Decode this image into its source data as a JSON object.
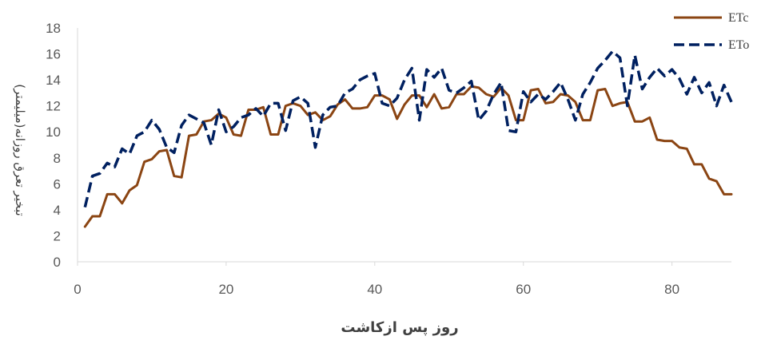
{
  "chart_data": {
    "type": "line",
    "title": "",
    "xlabel": "روز پس ازکاشت",
    "ylabel": "تبخیر تعرق روزانه(میلیمتر)",
    "xlim": [
      0,
      88
    ],
    "ylim": [
      0,
      18
    ],
    "xticks": [
      0,
      20,
      40,
      60,
      80
    ],
    "yticks": [
      0,
      2,
      4,
      6,
      8,
      10,
      12,
      14,
      16,
      18
    ],
    "grid": false,
    "legend_position": "top-right",
    "x": [
      1,
      2,
      3,
      4,
      5,
      6,
      7,
      8,
      9,
      10,
      11,
      12,
      13,
      14,
      15,
      16,
      17,
      18,
      19,
      20,
      21,
      22,
      23,
      24,
      25,
      26,
      27,
      28,
      29,
      30,
      31,
      32,
      33,
      34,
      35,
      36,
      37,
      38,
      39,
      40,
      41,
      42,
      43,
      44,
      45,
      46,
      47,
      48,
      49,
      50,
      51,
      52,
      53,
      54,
      55,
      56,
      57,
      58,
      59,
      60,
      61,
      62,
      63,
      64,
      65,
      66,
      67,
      68,
      69,
      70,
      71,
      72,
      73,
      74,
      75,
      76,
      77,
      78,
      79,
      80,
      81,
      82,
      83,
      84,
      85,
      86,
      87,
      88
    ],
    "series": [
      {
        "name": "ETc",
        "color": "#8B4513",
        "dash": "solid",
        "values": [
          2.7,
          3.5,
          3.5,
          5.2,
          5.2,
          4.5,
          5.5,
          5.9,
          7.7,
          7.9,
          8.5,
          8.6,
          6.6,
          6.5,
          9.7,
          9.8,
          10.8,
          10.9,
          11.4,
          11.1,
          9.8,
          9.7,
          11.7,
          11.7,
          11.9,
          9.8,
          9.8,
          12.0,
          12.2,
          12.0,
          11.3,
          11.5,
          10.9,
          11.2,
          12.1,
          12.5,
          11.8,
          11.8,
          11.9,
          12.8,
          12.8,
          12.5,
          11.0,
          12.1,
          12.8,
          12.8,
          11.9,
          12.9,
          11.8,
          11.9,
          12.9,
          12.9,
          13.5,
          13.4,
          12.9,
          12.7,
          13.4,
          12.8,
          10.9,
          10.9,
          13.2,
          13.3,
          12.2,
          12.3,
          12.9,
          12.8,
          12.3,
          10.9,
          10.9,
          13.2,
          13.3,
          12.0,
          12.2,
          12.3,
          10.8,
          10.8,
          11.1,
          9.4,
          9.3,
          9.3,
          8.8,
          8.7,
          7.5,
          7.5,
          6.4,
          6.2,
          5.2,
          5.2
        ]
      },
      {
        "name": "ETo",
        "color": "#002060",
        "dash": "dashed",
        "values": [
          4.2,
          6.6,
          6.8,
          7.6,
          7.3,
          8.7,
          8.3,
          9.7,
          10.0,
          10.9,
          10.2,
          8.8,
          8.4,
          10.5,
          11.3,
          11.0,
          10.7,
          9.0,
          11.7,
          10.0,
          10.4,
          11.1,
          11.3,
          11.8,
          11.2,
          12.2,
          12.2,
          10.1,
          12.4,
          12.7,
          12.2,
          8.8,
          11.3,
          11.9,
          12.0,
          13.0,
          13.3,
          14.0,
          14.3,
          14.5,
          12.2,
          12.0,
          12.6,
          14.0,
          14.9,
          10.9,
          14.8,
          14.2,
          14.9,
          13.2,
          13.0,
          13.4,
          13.9,
          10.9,
          11.6,
          12.9,
          13.8,
          10.1,
          10.0,
          13.1,
          12.3,
          12.9,
          12.5,
          13.1,
          13.8,
          12.5,
          10.9,
          12.9,
          13.8,
          14.9,
          15.5,
          16.2,
          15.7,
          12.0,
          15.9,
          13.3,
          14.2,
          14.9,
          14.3,
          14.8,
          14.1,
          12.9,
          14.2,
          13.0,
          13.8,
          12.0,
          13.6,
          12.3
        ]
      }
    ]
  }
}
